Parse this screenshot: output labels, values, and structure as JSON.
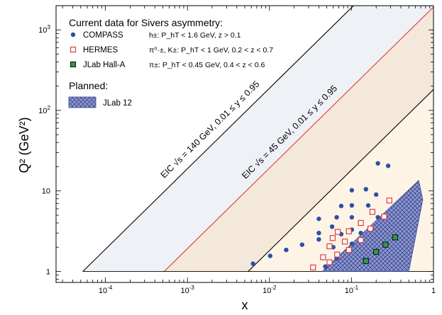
{
  "chart_data": {
    "type": "scatter",
    "xlabel": "x",
    "ylabel": "Q² (GeV²)",
    "x_scale": "log",
    "y_scale": "log",
    "xlim": [
      2.5e-05,
      1.0
    ],
    "ylim": [
      0.73,
      2000
    ],
    "grid": false,
    "x_ticks": [
      {
        "value": 0.0001,
        "base": "10",
        "exp": "-4"
      },
      {
        "value": 0.001,
        "base": "10",
        "exp": "-3"
      },
      {
        "value": 0.01,
        "base": "10",
        "exp": "-2"
      },
      {
        "value": 0.1,
        "base": "10",
        "exp": "-1"
      },
      {
        "value": 1,
        "base": "1",
        "exp": ""
      }
    ],
    "y_ticks": [
      {
        "value": 1,
        "base": "1",
        "exp": ""
      },
      {
        "value": 10,
        "base": "10",
        "exp": ""
      },
      {
        "value": 100,
        "base": "10",
        "exp": "2"
      },
      {
        "value": 1000,
        "base": "10",
        "exp": "3"
      }
    ],
    "legend_title": "Current data for Sivers asymmetry:",
    "planned_title": "Planned:",
    "series": [
      {
        "name": "COMPASS",
        "condition": "h±: P_hT < 1.6 GeV, z > 0.1",
        "marker": "filled-circle",
        "color": "#2E4FA6",
        "points": [
          {
            "x": 0.0063,
            "y": 1.25
          },
          {
            "x": 0.0102,
            "y": 1.56
          },
          {
            "x": 0.016,
            "y": 1.85
          },
          {
            "x": 0.025,
            "y": 2.15
          },
          {
            "x": 0.04,
            "y": 2.5
          },
          {
            "x": 0.048,
            "y": 1.15
          },
          {
            "x": 0.04,
            "y": 4.5
          },
          {
            "x": 0.04,
            "y": 3.0
          },
          {
            "x": 0.058,
            "y": 3.6
          },
          {
            "x": 0.06,
            "y": 2.0
          },
          {
            "x": 0.066,
            "y": 4.7
          },
          {
            "x": 0.066,
            "y": 1.45
          },
          {
            "x": 0.075,
            "y": 2.9
          },
          {
            "x": 0.075,
            "y": 6.5
          },
          {
            "x": 0.101,
            "y": 2.2
          },
          {
            "x": 0.101,
            "y": 3.3
          },
          {
            "x": 0.101,
            "y": 4.7
          },
          {
            "x": 0.101,
            "y": 6.6
          },
          {
            "x": 0.101,
            "y": 10.2
          },
          {
            "x": 0.13,
            "y": 3.0
          },
          {
            "x": 0.15,
            "y": 10.5
          },
          {
            "x": 0.16,
            "y": 6.6
          },
          {
            "x": 0.2,
            "y": 9.0
          },
          {
            "x": 0.21,
            "y": 4.7
          },
          {
            "x": 0.21,
            "y": 22.0
          },
          {
            "x": 0.28,
            "y": 20.5
          }
        ]
      },
      {
        "name": "HERMES",
        "condition": "π⁰·±, K±: P_hT < 1 GeV, 0.2 < z < 0.7",
        "marker": "open-square",
        "color": "#E03A3A",
        "points": [
          {
            "x": 0.034,
            "y": 1.12
          },
          {
            "x": 0.045,
            "y": 1.5
          },
          {
            "x": 0.054,
            "y": 1.3
          },
          {
            "x": 0.054,
            "y": 2.05
          },
          {
            "x": 0.059,
            "y": 2.6
          },
          {
            "x": 0.067,
            "y": 1.62
          },
          {
            "x": 0.068,
            "y": 3.1
          },
          {
            "x": 0.083,
            "y": 2.35
          },
          {
            "x": 0.093,
            "y": 1.85
          },
          {
            "x": 0.093,
            "y": 3.15
          },
          {
            "x": 0.13,
            "y": 2.45
          },
          {
            "x": 0.13,
            "y": 4.0
          },
          {
            "x": 0.17,
            "y": 3.4
          },
          {
            "x": 0.18,
            "y": 5.5
          },
          {
            "x": 0.25,
            "y": 4.8
          },
          {
            "x": 0.29,
            "y": 7.6
          }
        ]
      },
      {
        "name": "JLab Hall-A",
        "condition": "π±: P_hT < 0.45 GeV,  0.4 < z < 0.6",
        "marker": "filled-square",
        "color": "#2E9A4A",
        "points": [
          {
            "x": 0.15,
            "y": 1.35
          },
          {
            "x": 0.2,
            "y": 1.75
          },
          {
            "x": 0.26,
            "y": 2.15
          },
          {
            "x": 0.34,
            "y": 2.65
          }
        ]
      }
    ],
    "planned": [
      {
        "name": "JLab 12",
        "fill": "#8E99CF",
        "region": [
          {
            "x": 0.044,
            "y": 1.0
          },
          {
            "x": 0.5,
            "y": 1.0
          },
          {
            "x": 0.74,
            "y": 7.8
          },
          {
            "x": 0.66,
            "y": 13.5
          },
          {
            "x": 0.044,
            "y": 1.0
          }
        ]
      }
    ],
    "bands": [
      {
        "label": "EIC √s = 140 GeV, 0.01 ≤ y ≤ 0.95",
        "label_color": "#000000",
        "line_color": "#000000",
        "fill": "#EEF1F6",
        "x_start": 5.3e-05,
        "y_at_start": 1.0,
        "slope": 1.0
      },
      {
        "label": "EIC √s = 45 GeV, 0.01 ≤ y ≤ 0.95",
        "label_color": "#E03A3A",
        "line_color": "#E03A3A",
        "fill": "#F4E8DA",
        "x_start": 0.00052,
        "y_at_start": 1.0,
        "slope": 1.0
      },
      {
        "label": "",
        "label_color": "#000000",
        "line_color": "#000000",
        "fill": "#FDF4E6",
        "x_start": 0.0055,
        "y_at_start": 1.0,
        "slope": 1.0
      }
    ],
    "y_floor": 1.0
  },
  "colors": {
    "compass": "#2E4FA6",
    "hermes": "#E03A3A",
    "jlab": "#2E9A4A",
    "jlab12_fill": "#8E99CF",
    "eic45_label": "#E03A3A"
  }
}
